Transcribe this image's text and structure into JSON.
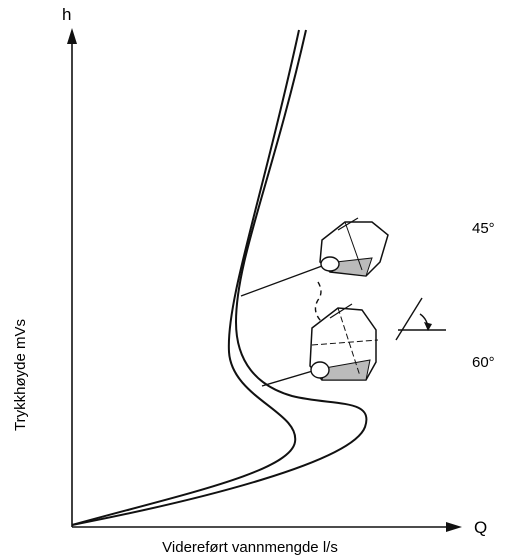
{
  "axes": {
    "y_symbol": "h",
    "x_symbol": "Q",
    "y_label": "Trykkhøyde mVs",
    "x_label": "Videreført vannmengde l/s"
  },
  "annotations": {
    "upper": "45°",
    "lower": "60°"
  }
}
